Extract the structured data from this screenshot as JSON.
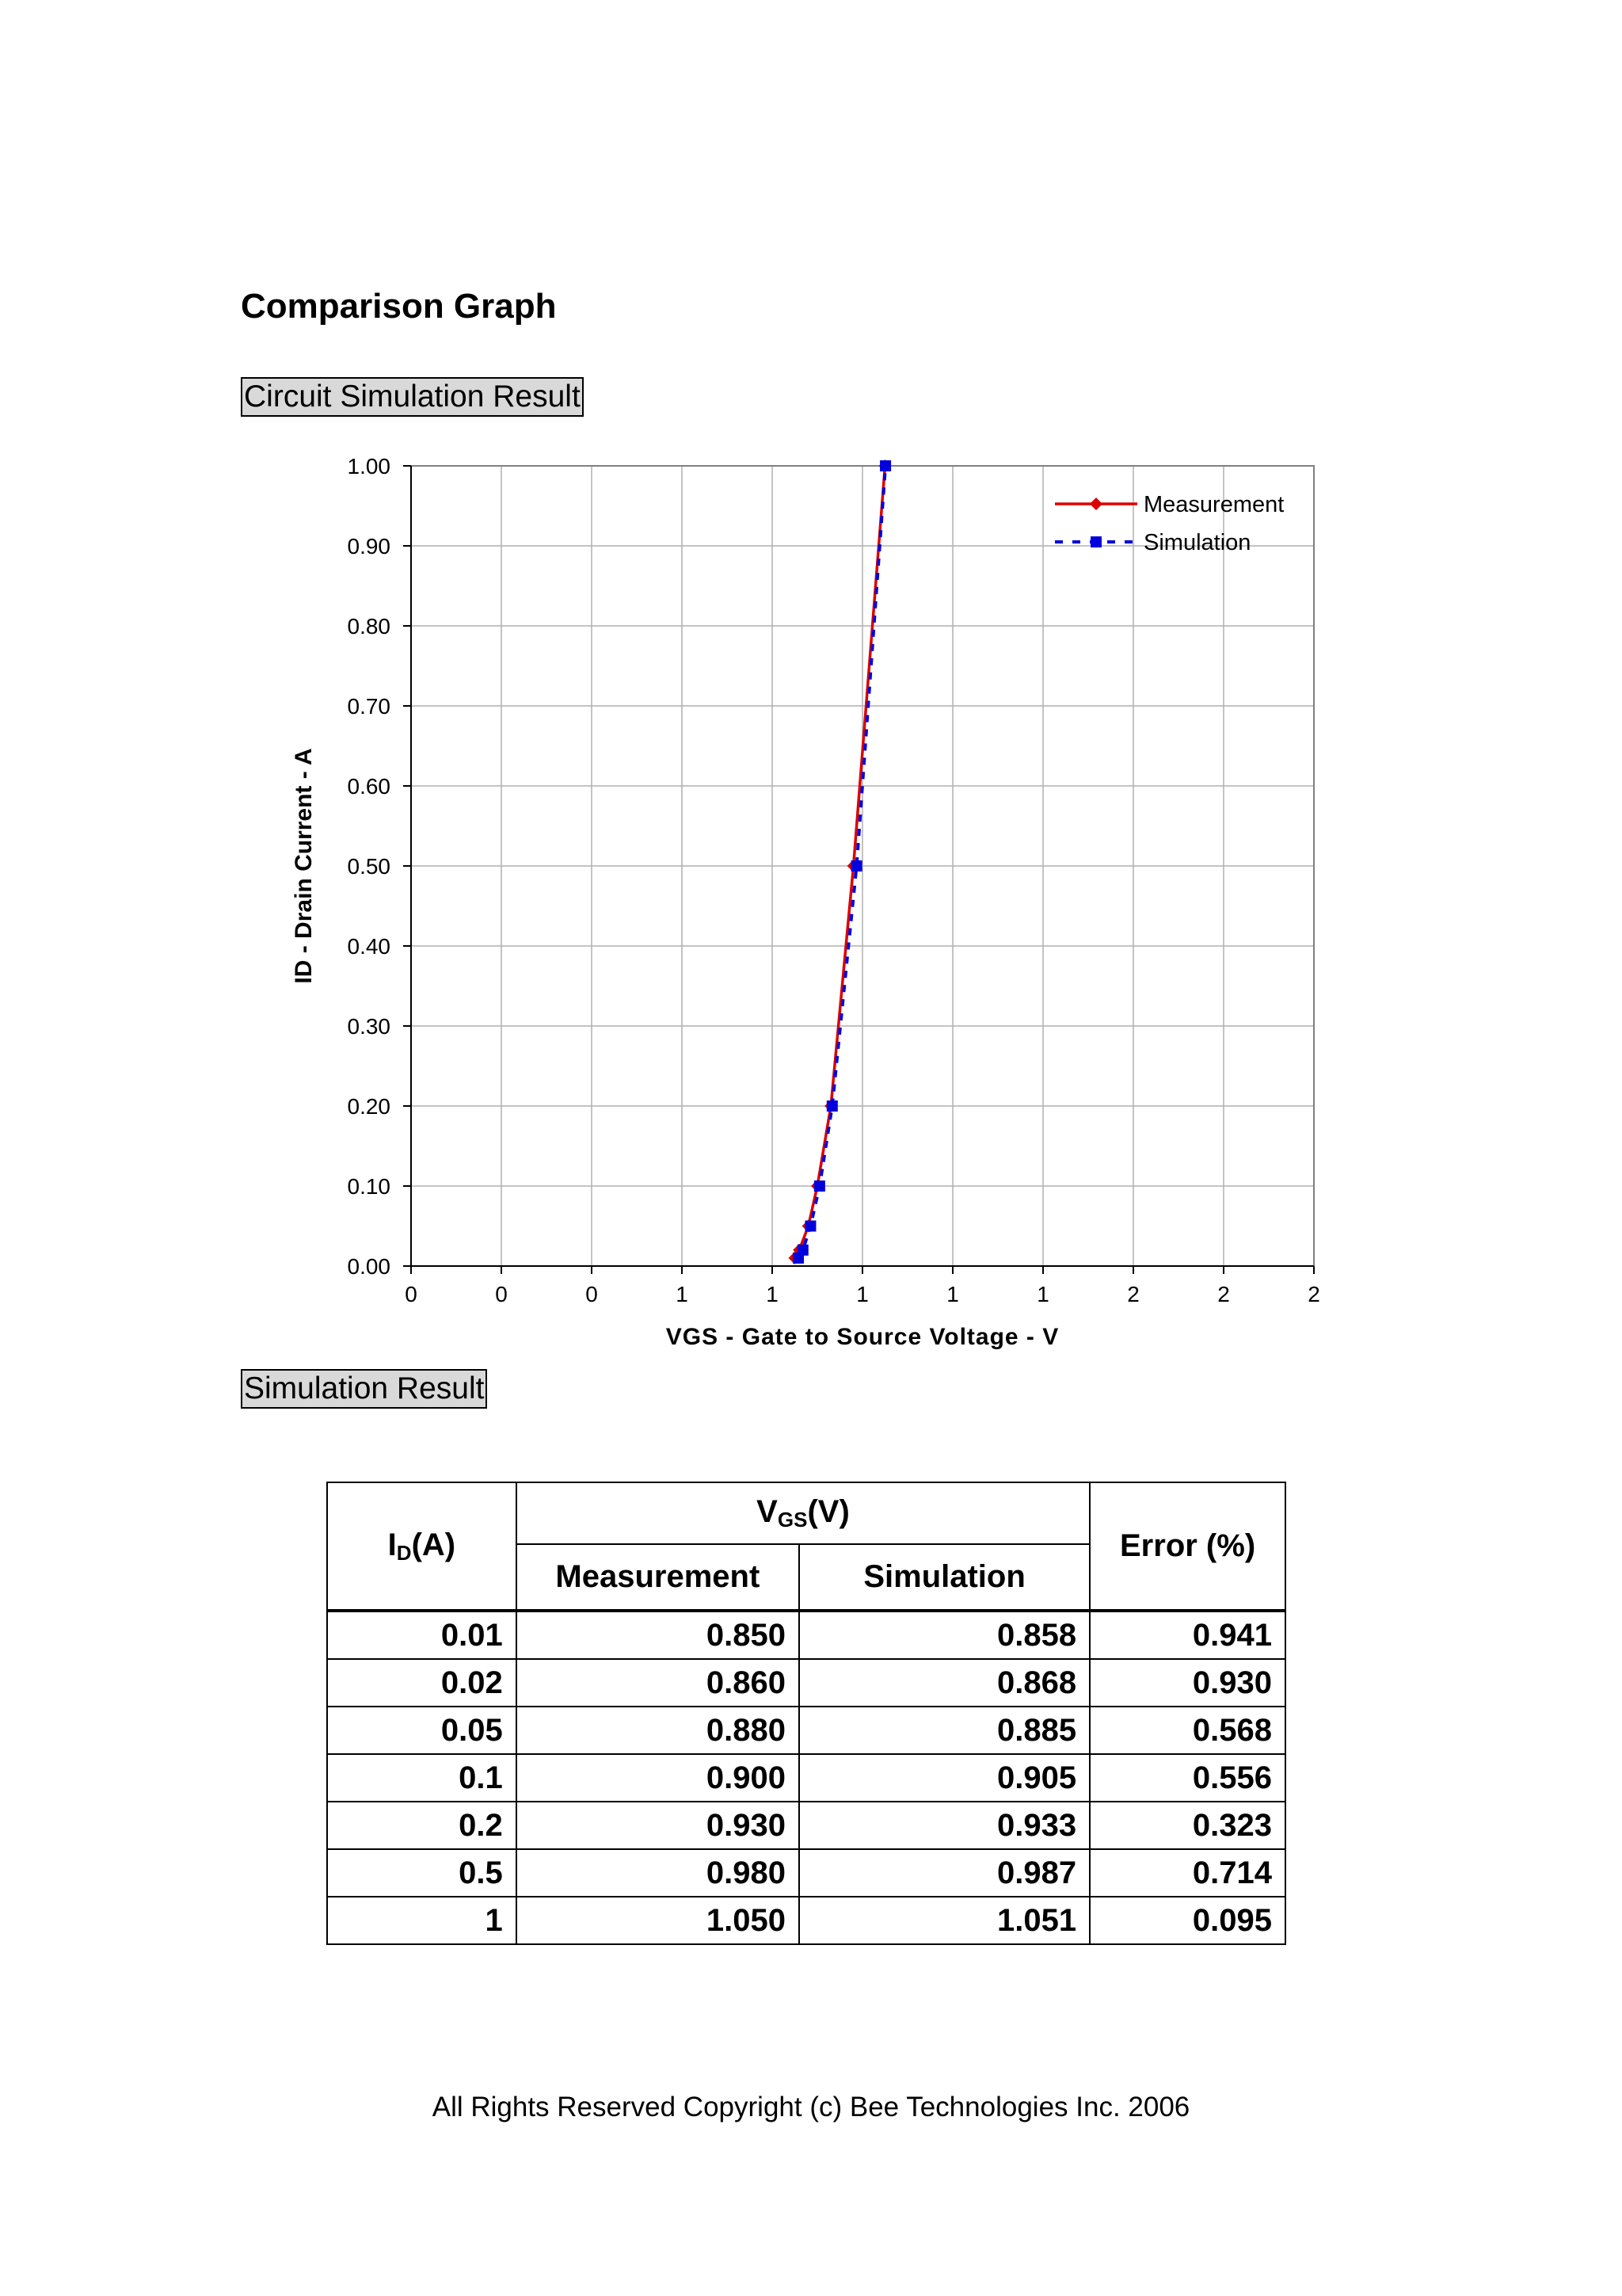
{
  "title": "Comparison Graph",
  "section_labels": {
    "circuit": "Circuit Simulation Result",
    "simulation": "Simulation Result"
  },
  "chart_data": {
    "type": "line",
    "xlabel": "VGS - Gate to Source Voltage - V",
    "ylabel": "ID - Drain Current - A",
    "xlim": [
      0,
      2
    ],
    "ylim": [
      0,
      1
    ],
    "x_tick_labels": [
      "0",
      "0",
      "0",
      "1",
      "1",
      "1",
      "1",
      "1",
      "2",
      "2",
      "2"
    ],
    "y_tick_labels": [
      "0.00",
      "0.10",
      "0.20",
      "0.30",
      "0.40",
      "0.50",
      "0.60",
      "0.70",
      "0.80",
      "0.90",
      "1.00"
    ],
    "grid": true,
    "legend": "top-right",
    "series": [
      {
        "name": "Measurement",
        "color": "#dd0000",
        "marker": "diamond",
        "style": "solid",
        "x": [
          0.85,
          0.86,
          0.88,
          0.9,
          0.93,
          0.98,
          1.05
        ],
        "y": [
          0.01,
          0.02,
          0.05,
          0.1,
          0.2,
          0.5,
          1
        ]
      },
      {
        "name": "Simulation",
        "color": "#0000dd",
        "marker": "square",
        "style": "dashed",
        "x": [
          0.858,
          0.868,
          0.885,
          0.905,
          0.933,
          0.987,
          1.051
        ],
        "y": [
          0.01,
          0.02,
          0.05,
          0.1,
          0.2,
          0.5,
          1
        ]
      }
    ]
  },
  "table": {
    "col_id": "I",
    "col_id_sub": "D",
    "col_id_unit": "(A)",
    "col_vgs": "V",
    "col_vgs_sub": "GS",
    "col_vgs_unit": "(V)",
    "col_meas": "Measurement",
    "col_sim": "Simulation",
    "col_err": "Error (%)",
    "rows": [
      [
        "0.01",
        "0.850",
        "0.858",
        "0.941"
      ],
      [
        "0.02",
        "0.860",
        "0.868",
        "0.930"
      ],
      [
        "0.05",
        "0.880",
        "0.885",
        "0.568"
      ],
      [
        "0.1",
        "0.900",
        "0.905",
        "0.556"
      ],
      [
        "0.2",
        "0.930",
        "0.933",
        "0.323"
      ],
      [
        "0.5",
        "0.980",
        "0.987",
        "0.714"
      ],
      [
        "1",
        "1.050",
        "1.051",
        "0.095"
      ]
    ]
  },
  "copyright": "All Rights Reserved Copyright (c) Bee Technologies Inc. 2006"
}
